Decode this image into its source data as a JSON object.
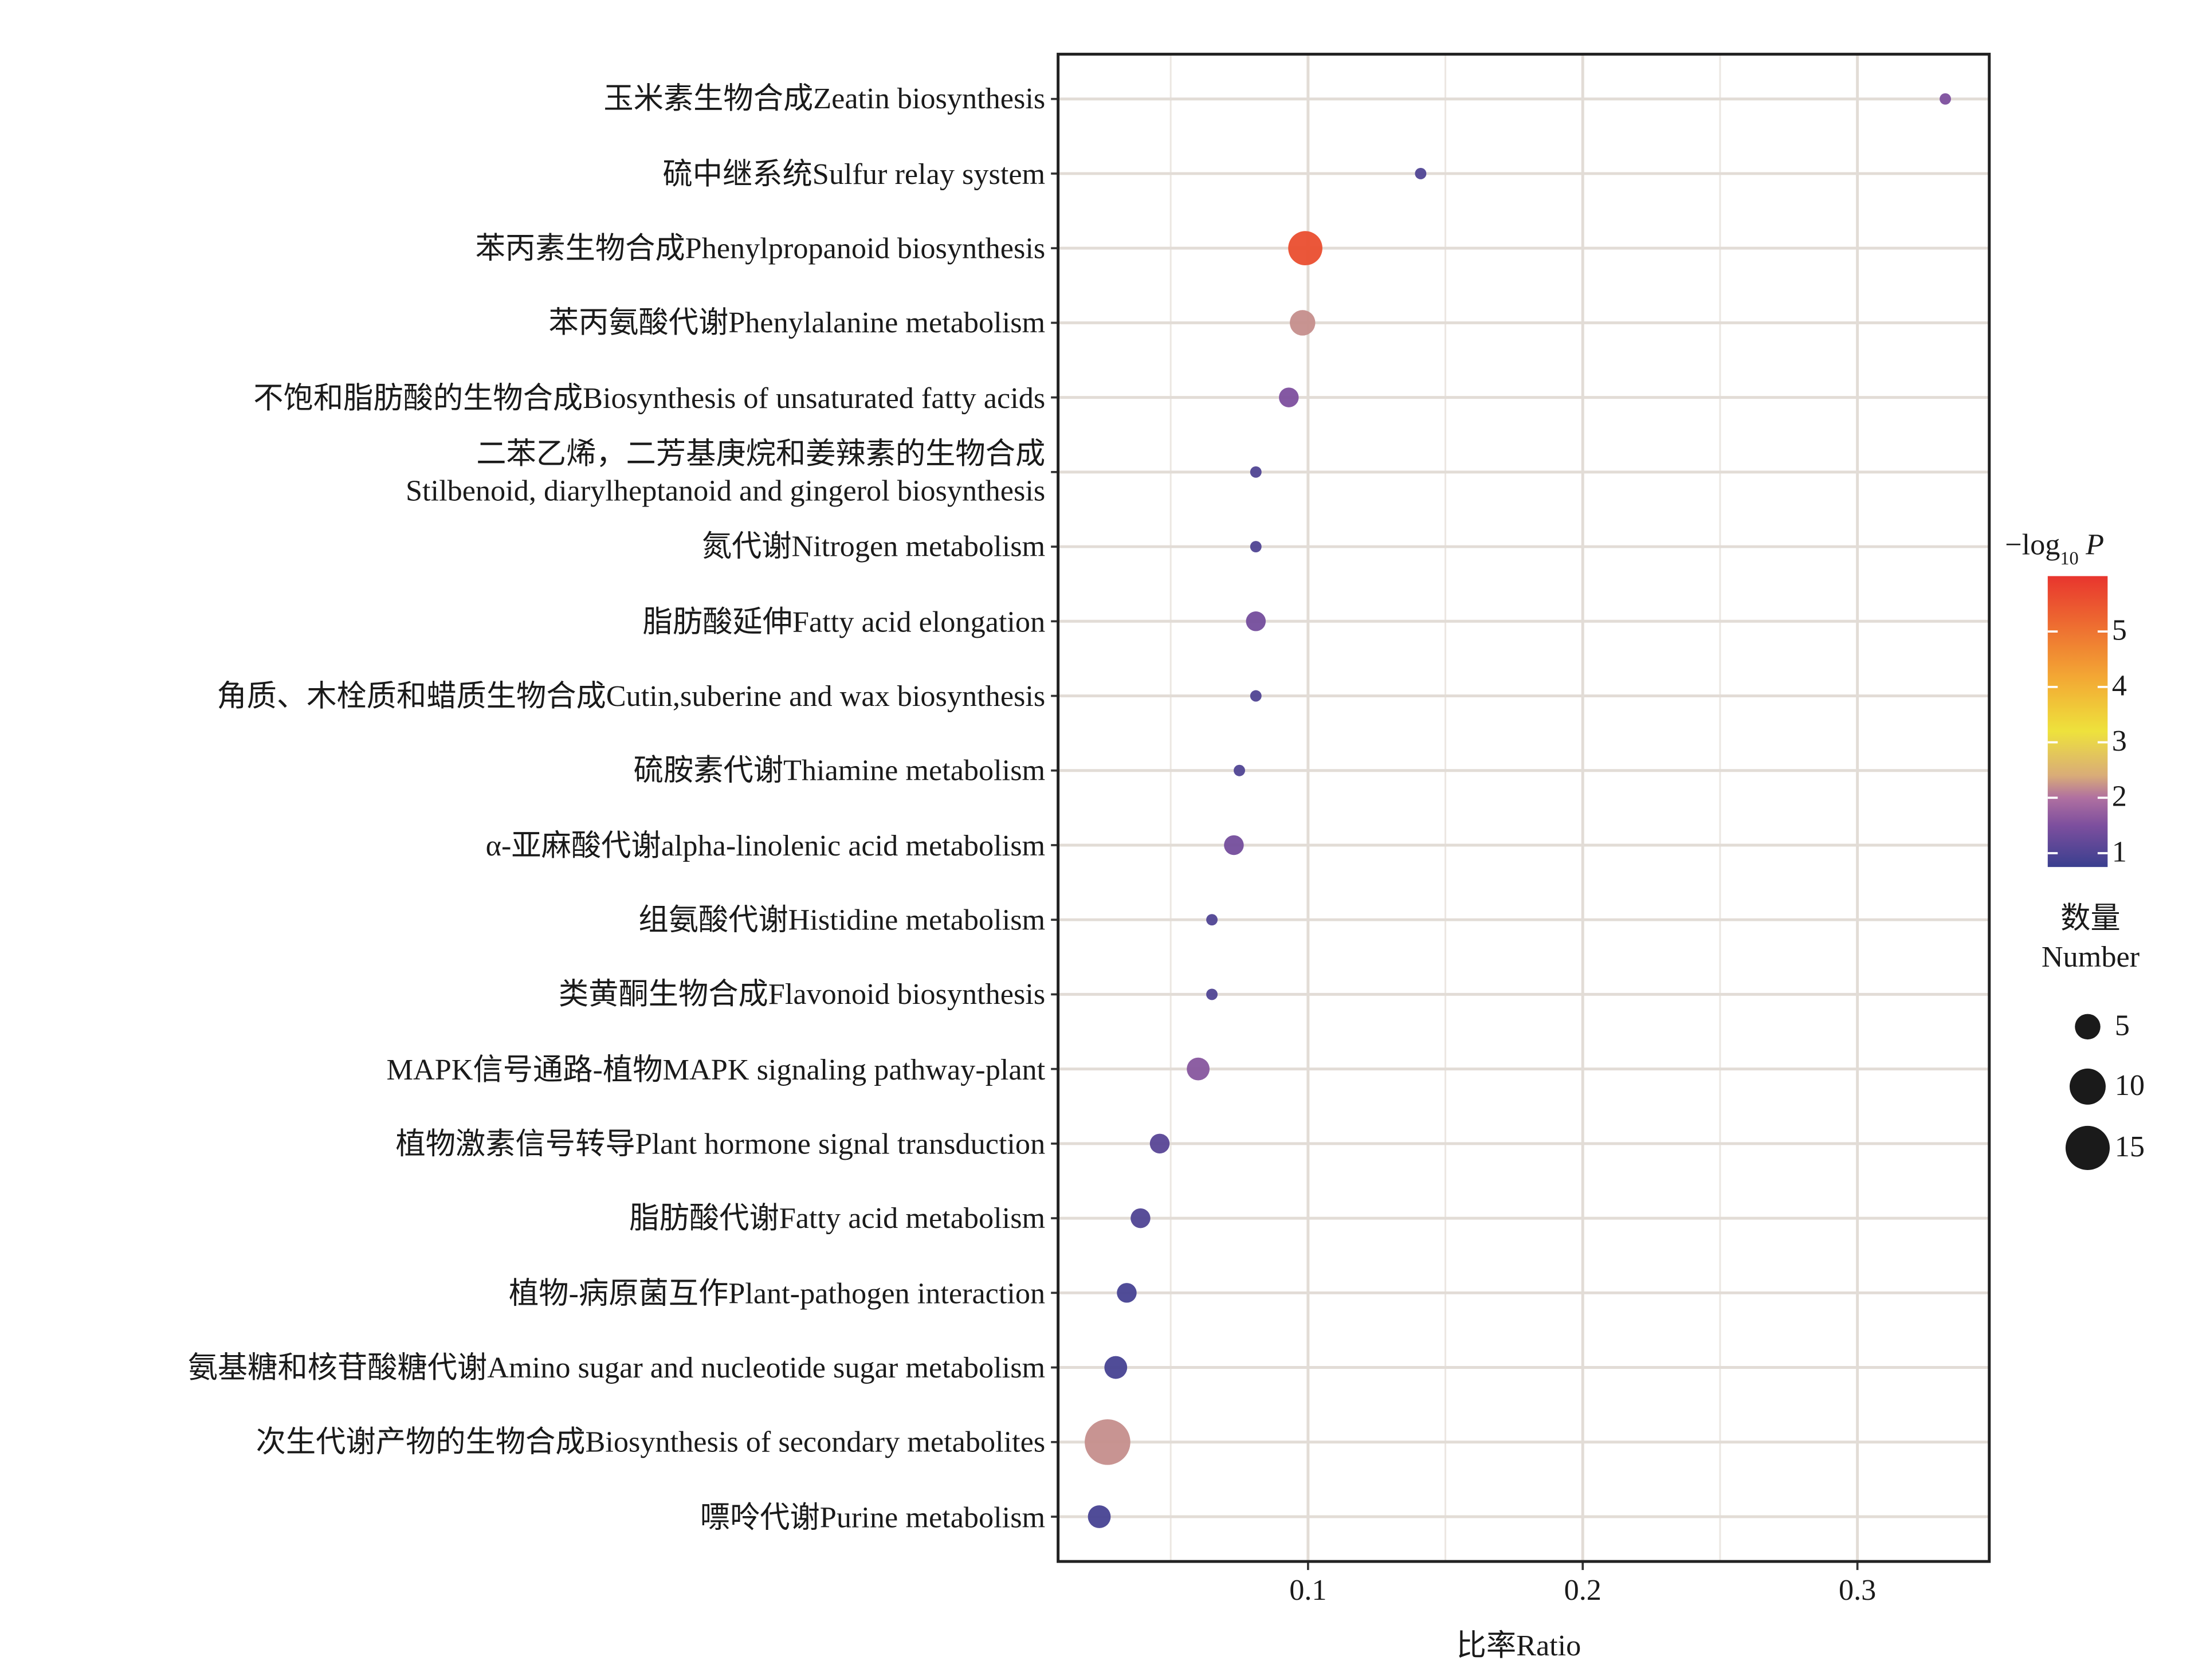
{
  "chart_data": {
    "type": "bubble",
    "xlabel": "比率Ratio",
    "categories": [
      "玉米素生物合成Zeatin biosynthesis",
      "硫中继系统Sulfur relay system",
      "苯丙素生物合成Phenylpropanoid biosynthesis",
      "苯丙氨酸代谢Phenylalanine metabolism",
      "不饱和脂肪酸的生物合成Biosynthesis of unsaturated fatty acids",
      "二苯乙烯，二芳基庚烷和姜辣素的生物合成\nStilbenoid, diarylheptanoid and gingerol biosynthesis",
      "氮代谢Nitrogen metabolism",
      "脂肪酸延伸Fatty acid elongation",
      "角质、木栓质和蜡质生物合成Cutin,suberine and wax biosynthesis",
      "硫胺素代谢Thiamine metabolism",
      "α-亚麻酸代谢alpha-linolenic acid metabolism",
      "组氨酸代谢Histidine metabolism",
      "类黄酮生物合成Flavonoid biosynthesis",
      "MAPK信号通路-植物MAPK signaling pathway-plant",
      "植物激素信号转导Plant hormone signal transduction",
      "脂肪酸代谢Fatty acid metabolism",
      "植物-病原菌互作Plant-pathogen interaction",
      "氨基糖和核苷酸糖代谢Amino sugar and nucleotide sugar metabolism",
      "次生代谢产物的生物合成Biosynthesis of secondary metabolites",
      "嘌呤代谢Purine metabolism"
    ],
    "x": [
      0.332,
      0.141,
      0.099,
      0.098,
      0.093,
      0.081,
      0.081,
      0.081,
      0.081,
      0.075,
      0.073,
      0.065,
      0.065,
      0.06,
      0.046,
      0.039,
      0.034,
      0.03,
      0.027,
      0.024
    ],
    "size": [
      1,
      1,
      9,
      5,
      3,
      1,
      1,
      3,
      1,
      1,
      3,
      1,
      1,
      4,
      3,
      3,
      3,
      4,
      16,
      4
    ],
    "color_values": [
      1.5,
      1.0,
      5.6,
      2.2,
      1.5,
      1.0,
      1.0,
      1.4,
      1.0,
      1.0,
      1.4,
      1.0,
      1.0,
      1.6,
      1.1,
      1.0,
      0.9,
      0.9,
      2.2,
      0.9
    ],
    "xlim": [
      0.009,
      0.348
    ],
    "xticks": [
      0.1,
      0.2,
      0.3
    ],
    "x_minor_grid": [
      0.05,
      0.15,
      0.25
    ],
    "colorbar_title": {
      "prefix": "−log",
      "sub": "10",
      "var": "P"
    },
    "colorlim": [
      0.75,
      6.0
    ],
    "colorticks": [
      1,
      2,
      3,
      4,
      5
    ],
    "colorscale": [
      [
        0.75,
        "#3a3f8f"
      ],
      [
        1.5,
        "#7d4f9e"
      ],
      [
        2.0,
        "#b070a0"
      ],
      [
        2.4,
        "#d9ac78"
      ],
      [
        3.2,
        "#eee23c"
      ],
      [
        4.2,
        "#f3a634"
      ],
      [
        6.0,
        "#e8352e"
      ]
    ],
    "size_legend_title": [
      "数量",
      "Number"
    ],
    "size_legend": [
      5,
      10,
      15
    ],
    "grid": true
  }
}
